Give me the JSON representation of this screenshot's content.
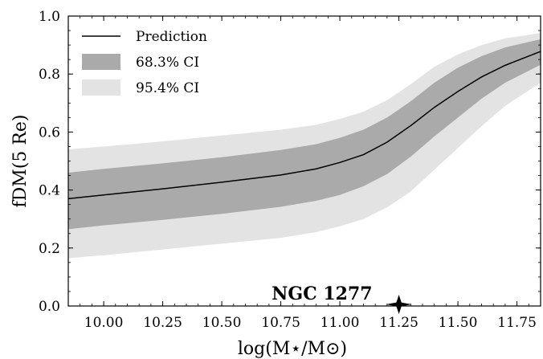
{
  "chart_data": {
    "type": "area",
    "xlabel": "log(M⋆/M⊙)",
    "ylabel": "fDM(5 Re)",
    "xlim": [
      9.85,
      11.85
    ],
    "ylim": [
      0.0,
      1.0
    ],
    "xticks": [
      10.0,
      10.25,
      10.5,
      10.75,
      11.0,
      11.25,
      11.5,
      11.75
    ],
    "xtick_labels": [
      "10.00",
      "10.25",
      "10.50",
      "10.75",
      "11.00",
      "11.25",
      "11.50",
      "11.75"
    ],
    "yticks": [
      0.0,
      0.2,
      0.4,
      0.6,
      0.8,
      1.0
    ],
    "ytick_labels": [
      "0.0",
      "0.2",
      "0.4",
      "0.6",
      "0.8",
      "1.0"
    ],
    "grid": false,
    "legend_position": "top-left",
    "x": [
      9.85,
      10.0,
      10.25,
      10.5,
      10.75,
      10.9,
      11.0,
      11.1,
      11.2,
      11.3,
      11.4,
      11.5,
      11.6,
      11.7,
      11.85
    ],
    "series": [
      {
        "name": "Prediction",
        "kind": "line",
        "color": "#000000",
        "values": [
          0.37,
          0.383,
          0.404,
          0.427,
          0.452,
          0.473,
          0.495,
          0.522,
          0.565,
          0.622,
          0.685,
          0.74,
          0.79,
          0.83,
          0.878
        ]
      },
      {
        "name": "68.3% CI",
        "kind": "band",
        "color": "#aaaaaa",
        "lower": [
          0.265,
          0.278,
          0.297,
          0.318,
          0.342,
          0.363,
          0.383,
          0.413,
          0.455,
          0.515,
          0.585,
          0.65,
          0.715,
          0.77,
          0.832
        ],
        "upper": [
          0.46,
          0.473,
          0.492,
          0.513,
          0.538,
          0.558,
          0.58,
          0.608,
          0.65,
          0.706,
          0.77,
          0.822,
          0.862,
          0.892,
          0.92
        ]
      },
      {
        "name": "95.4% CI",
        "kind": "band",
        "color": "#e3e3e3",
        "lower": [
          0.165,
          0.175,
          0.195,
          0.215,
          0.235,
          0.255,
          0.275,
          0.3,
          0.34,
          0.395,
          0.47,
          0.545,
          0.62,
          0.69,
          0.77
        ],
        "upper": [
          0.54,
          0.55,
          0.568,
          0.588,
          0.608,
          0.625,
          0.645,
          0.67,
          0.71,
          0.765,
          0.825,
          0.868,
          0.9,
          0.923,
          0.942
        ]
      }
    ],
    "annotations": [
      {
        "text": "NGC 1277",
        "x": 11.25,
        "y": 0.0,
        "marker": "star",
        "marker_color": "#000000"
      }
    ]
  }
}
